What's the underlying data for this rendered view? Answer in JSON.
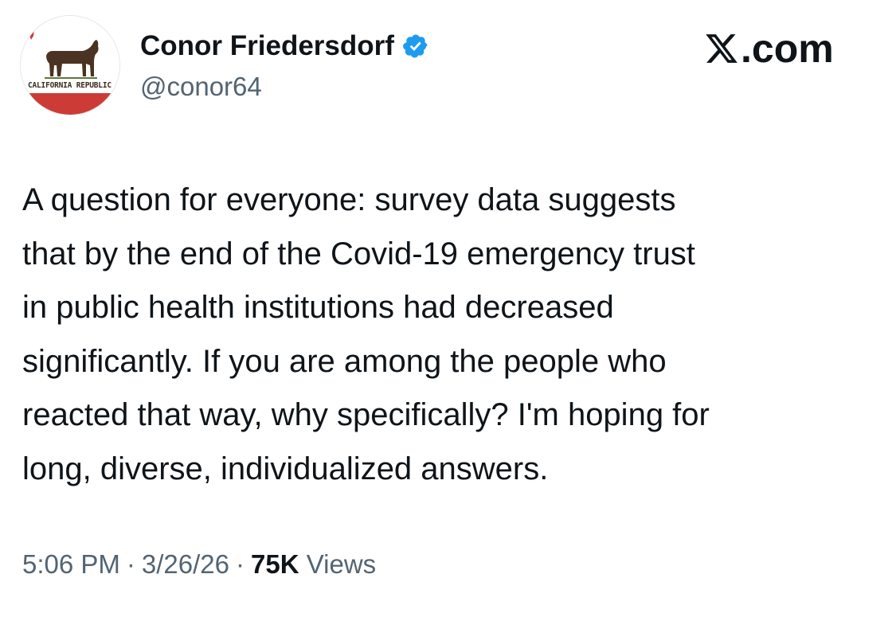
{
  "author": {
    "display_name": "Conor Friedersdorf",
    "handle": "@conor64",
    "avatar_caption": "CALIFORNIA REPUBLIC",
    "verified_icon": "verified-badge-icon",
    "verified_color": "#1d9bf0"
  },
  "brand": {
    "label": ".com",
    "icon": "x-logo-icon"
  },
  "tweet": {
    "text": "A question for everyone: survey data suggests\nthat by the end of the Covid-19 emergency trust\nin public health institutions had decreased\nsignificantly. If you are among the people who\nreacted that way, why specifically? I'm hoping for\nlong, diverse, individualized answers."
  },
  "meta": {
    "time": "5:06 PM",
    "separator": "·",
    "date": "3/26/26",
    "views_count": "75K",
    "views_label": "Views"
  },
  "colors": {
    "text_primary": "#0f1419",
    "text_secondary": "#536471",
    "flag_red": "#cc3b35",
    "bear_brown": "#4a3322"
  }
}
